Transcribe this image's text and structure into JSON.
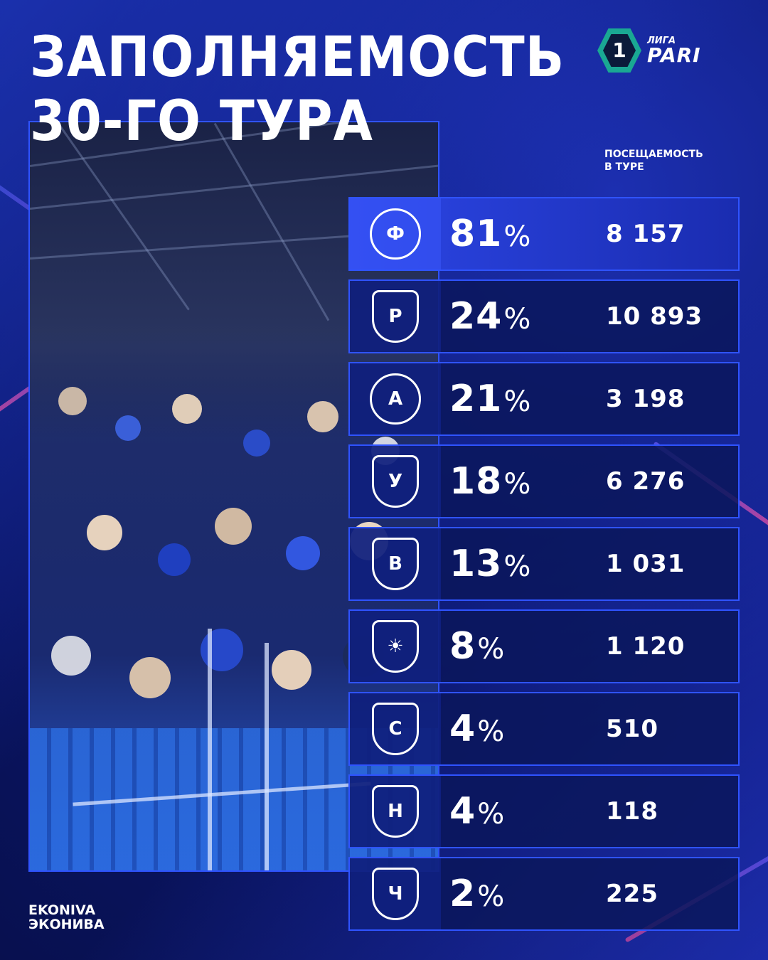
{
  "header": {
    "title_line1": "Заполняемость",
    "title_line2": "30-го тура"
  },
  "league_logo": {
    "number": "1",
    "liga": "ЛИГА",
    "pari": "PARI",
    "icon": "league-hexagon-icon",
    "color": "#1aa893"
  },
  "column_header": {
    "line1": "ПОСЕЩАЕМОСТЬ",
    "line2": "В ТУРЕ"
  },
  "photo": {
    "description_icon": "stadium-crowd-photo"
  },
  "rows": [
    {
      "icon": "fakel-voronezh-badge-icon",
      "badge_glyph": "Ф",
      "percent": "81",
      "percent_sign": "%",
      "attendance": "8 157"
    },
    {
      "icon": "rotor-volgograd-badge-icon",
      "badge_glyph": "Р",
      "percent": "24",
      "percent_sign": "%",
      "attendance": "10 893"
    },
    {
      "icon": "arsenal-tula-badge-icon",
      "badge_glyph": "А",
      "percent": "21",
      "percent_sign": "%",
      "attendance": "3 198"
    },
    {
      "icon": "ural-badge-icon",
      "badge_glyph": "У",
      "percent": "18",
      "percent_sign": "%",
      "attendance": "6 276"
    },
    {
      "icon": "volga-ulyanovsk-badge-icon",
      "badge_glyph": "В",
      "percent": "13",
      "percent_sign": "%",
      "attendance": "1 031"
    },
    {
      "icon": "ufa-badge-icon",
      "badge_glyph": "☀",
      "percent": "8",
      "percent_sign": "%",
      "attendance": "1 120"
    },
    {
      "icon": "sokol-saratov-badge-icon",
      "badge_glyph": "С",
      "percent": "4",
      "percent_sign": "%",
      "attendance": "510"
    },
    {
      "icon": "neftekhimik-badge-icon",
      "badge_glyph": "Н",
      "percent": "4",
      "percent_sign": "%",
      "attendance": "118"
    },
    {
      "icon": "chernomorets-badge-icon",
      "badge_glyph": "Ч",
      "percent": "2",
      "percent_sign": "%",
      "attendance": "225"
    }
  ],
  "sponsor": {
    "line1": "EKONIVA",
    "line2": "ЭКОНИВА"
  },
  "colors": {
    "background": "#0a1670",
    "accent_border": "#2f53ff",
    "top_row": "#2c46e6"
  }
}
